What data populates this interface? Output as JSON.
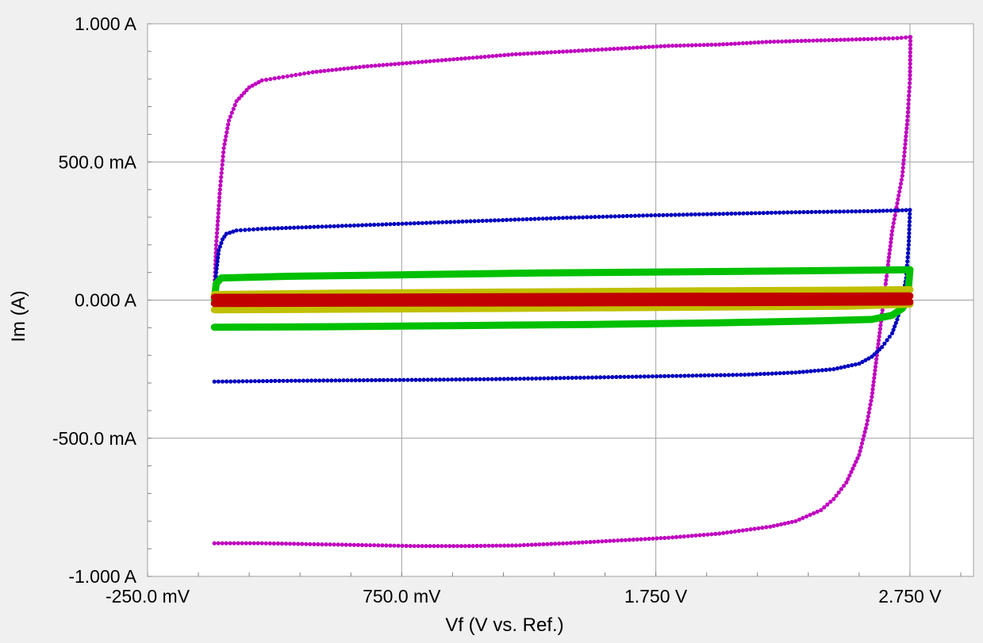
{
  "chart_data": {
    "type": "scatter",
    "title": "",
    "xlabel": "Vf (V vs. Ref.)",
    "ylabel": "Im (A)",
    "xlim": [
      -0.25,
      3.0
    ],
    "ylim": [
      -1.0,
      1.0
    ],
    "x_ticks": [
      {
        "value": -0.25,
        "label": "-250.0 mV"
      },
      {
        "value": 0.75,
        "label": "750.0 mV"
      },
      {
        "value": 1.75,
        "label": "1.750 V"
      },
      {
        "value": 2.75,
        "label": "2.750 V"
      }
    ],
    "y_ticks": [
      {
        "value": 1.0,
        "label": "1.000 A"
      },
      {
        "value": 0.5,
        "label": "500.0 mA"
      },
      {
        "value": 0.0,
        "label": "0.000 A"
      },
      {
        "value": -0.5,
        "label": "-500.0 mA"
      },
      {
        "value": -1.0,
        "label": "-1.000 A"
      }
    ],
    "grid": true,
    "legend": "none",
    "series": [
      {
        "color": "#c000c0",
        "upper": [
          [
            0.013,
            0.03
          ],
          [
            0.02,
            0.2
          ],
          [
            0.035,
            0.4
          ],
          [
            0.05,
            0.55
          ],
          [
            0.07,
            0.65
          ],
          [
            0.1,
            0.72
          ],
          [
            0.15,
            0.77
          ],
          [
            0.2,
            0.795
          ],
          [
            0.3,
            0.81
          ],
          [
            0.4,
            0.825
          ],
          [
            0.6,
            0.845
          ],
          [
            0.8,
            0.86
          ],
          [
            1.0,
            0.875
          ],
          [
            1.2,
            0.89
          ],
          [
            1.4,
            0.9
          ],
          [
            1.6,
            0.91
          ],
          [
            1.8,
            0.92
          ],
          [
            2.0,
            0.925
          ],
          [
            2.2,
            0.935
          ],
          [
            2.4,
            0.94
          ],
          [
            2.6,
            0.945
          ],
          [
            2.7,
            0.948
          ],
          [
            2.75,
            0.952
          ]
        ],
        "lower": [
          [
            0.013,
            -0.88
          ],
          [
            0.2,
            -0.88
          ],
          [
            0.5,
            -0.885
          ],
          [
            0.8,
            -0.89
          ],
          [
            1.0,
            -0.89
          ],
          [
            1.2,
            -0.888
          ],
          [
            1.4,
            -0.88
          ],
          [
            1.6,
            -0.87
          ],
          [
            1.8,
            -0.86
          ],
          [
            2.0,
            -0.845
          ],
          [
            2.2,
            -0.82
          ],
          [
            2.3,
            -0.8
          ],
          [
            2.4,
            -0.76
          ],
          [
            2.45,
            -0.72
          ],
          [
            2.5,
            -0.66
          ],
          [
            2.55,
            -0.56
          ],
          [
            2.58,
            -0.45
          ],
          [
            2.6,
            -0.35
          ],
          [
            2.62,
            -0.2
          ],
          [
            2.64,
            -0.05
          ],
          [
            2.66,
            0.1
          ],
          [
            2.68,
            0.25
          ],
          [
            2.7,
            0.35
          ],
          [
            2.72,
            0.45
          ],
          [
            2.73,
            0.55
          ],
          [
            2.74,
            0.65
          ],
          [
            2.75,
            0.8
          ],
          [
            2.752,
            0.952
          ]
        ]
      },
      {
        "color": "#0000c0",
        "upper": [
          [
            0.013,
            0.0
          ],
          [
            0.02,
            0.1
          ],
          [
            0.03,
            0.18
          ],
          [
            0.045,
            0.22
          ],
          [
            0.06,
            0.24
          ],
          [
            0.1,
            0.252
          ],
          [
            0.2,
            0.258
          ],
          [
            0.5,
            0.268
          ],
          [
            0.8,
            0.278
          ],
          [
            1.1,
            0.288
          ],
          [
            1.4,
            0.298
          ],
          [
            1.7,
            0.306
          ],
          [
            2.0,
            0.312
          ],
          [
            2.3,
            0.318
          ],
          [
            2.6,
            0.322
          ],
          [
            2.75,
            0.326
          ]
        ],
        "lower": [
          [
            0.013,
            -0.295
          ],
          [
            0.3,
            -0.292
          ],
          [
            0.6,
            -0.29
          ],
          [
            0.9,
            -0.288
          ],
          [
            1.2,
            -0.285
          ],
          [
            1.5,
            -0.28
          ],
          [
            1.8,
            -0.275
          ],
          [
            2.1,
            -0.27
          ],
          [
            2.3,
            -0.262
          ],
          [
            2.45,
            -0.25
          ],
          [
            2.55,
            -0.23
          ],
          [
            2.6,
            -0.205
          ],
          [
            2.64,
            -0.17
          ],
          [
            2.68,
            -0.12
          ],
          [
            2.7,
            -0.07
          ],
          [
            2.72,
            0.0
          ],
          [
            2.735,
            0.08
          ],
          [
            2.745,
            0.2
          ],
          [
            2.75,
            0.326
          ]
        ]
      },
      {
        "color": "#00c000",
        "upper": [
          [
            0.013,
            0.0
          ],
          [
            0.02,
            0.06
          ],
          [
            0.04,
            0.08
          ],
          [
            0.3,
            0.086
          ],
          [
            0.8,
            0.092
          ],
          [
            1.3,
            0.098
          ],
          [
            1.8,
            0.102
          ],
          [
            2.3,
            0.106
          ],
          [
            2.75,
            0.11
          ]
        ],
        "lower": [
          [
            0.013,
            -0.098
          ],
          [
            0.5,
            -0.096
          ],
          [
            1.0,
            -0.092
          ],
          [
            1.5,
            -0.088
          ],
          [
            2.0,
            -0.082
          ],
          [
            2.4,
            -0.075
          ],
          [
            2.6,
            -0.07
          ],
          [
            2.68,
            -0.055
          ],
          [
            2.72,
            -0.03
          ],
          [
            2.74,
            0.0
          ],
          [
            2.75,
            0.11
          ]
        ]
      },
      {
        "color": "#c0c000",
        "upper": [
          [
            0.013,
            0.02
          ],
          [
            0.5,
            0.025
          ],
          [
            1.0,
            0.028
          ],
          [
            1.5,
            0.031
          ],
          [
            2.0,
            0.034
          ],
          [
            2.5,
            0.036
          ],
          [
            2.75,
            0.038
          ]
        ],
        "lower": [
          [
            0.013,
            -0.035
          ],
          [
            0.5,
            -0.033
          ],
          [
            1.0,
            -0.031
          ],
          [
            1.5,
            -0.028
          ],
          [
            2.0,
            -0.025
          ],
          [
            2.5,
            -0.022
          ],
          [
            2.75,
            -0.015
          ]
        ]
      },
      {
        "color": "#c00000",
        "upper": [
          [
            0.013,
            0.01
          ],
          [
            0.7,
            0.011
          ],
          [
            1.4,
            0.013
          ],
          [
            2.1,
            0.014
          ],
          [
            2.75,
            0.015
          ]
        ],
        "lower": [
          [
            0.013,
            -0.012
          ],
          [
            0.7,
            -0.011
          ],
          [
            1.4,
            -0.01
          ],
          [
            2.1,
            -0.009
          ],
          [
            2.75,
            -0.007
          ]
        ]
      }
    ]
  }
}
